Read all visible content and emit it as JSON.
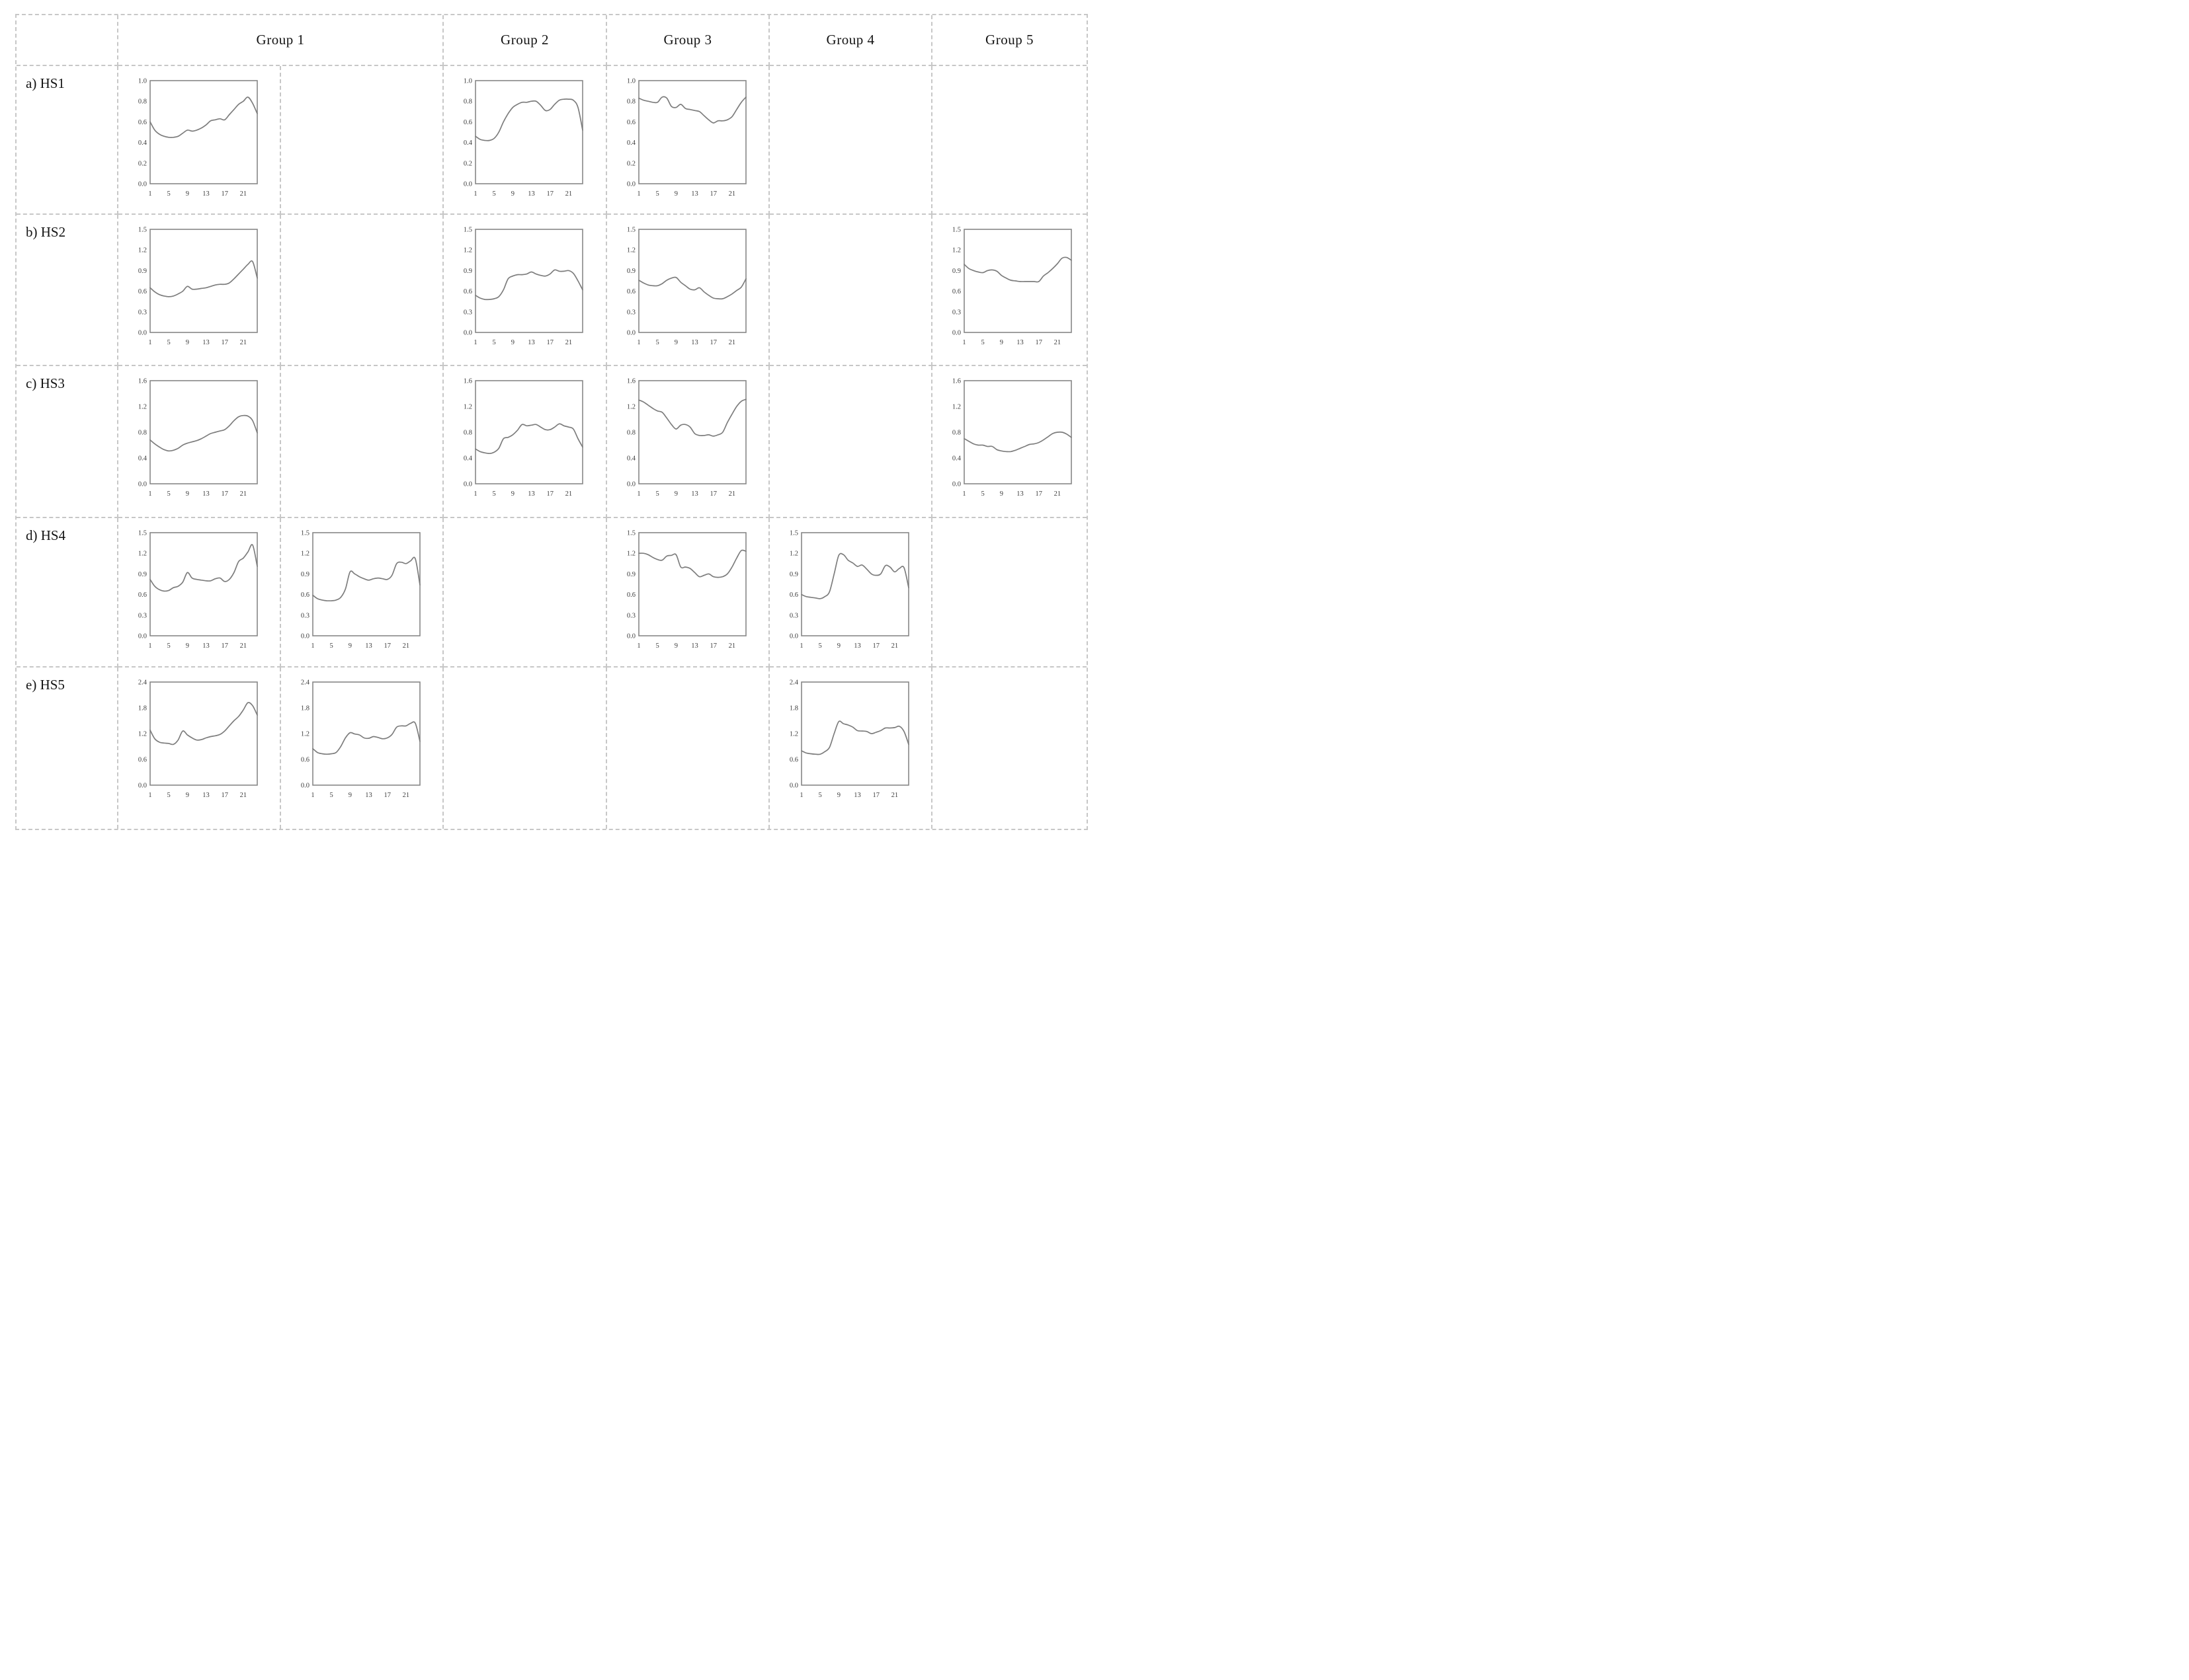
{
  "style": {
    "grid_border_color": "#c7c7c7",
    "plot_border_color": "#878787",
    "line_color": "#7d7d7d",
    "tick_text_color": "#3c3c3c",
    "label_text_color": "#141414",
    "background": "#ffffff"
  },
  "header": {
    "groups": [
      "Group 1",
      "Group 2",
      "Group 3",
      "Group 4",
      "Group 5"
    ]
  },
  "rows": [
    {
      "label": "a) HS1"
    },
    {
      "label": "b) HS2"
    },
    {
      "label": "c) HS3"
    },
    {
      "label": "d) HS4"
    },
    {
      "label": "e) HS5"
    }
  ],
  "x_axis": {
    "range": [
      1,
      24
    ],
    "ticks": [
      1,
      5,
      9,
      13,
      17,
      21
    ]
  },
  "chart_data": [
    {
      "id": "hs1-g1",
      "type": "line",
      "row_label": "a) HS1",
      "group": "Group 1",
      "ylim": [
        0,
        1.0
      ],
      "y_ticks": [
        0.0,
        0.2,
        0.4,
        0.6,
        0.8,
        1.0
      ],
      "x_ticks": [
        1,
        5,
        9,
        13,
        17,
        21
      ],
      "x_range": [
        1,
        24
      ],
      "values": [
        0.6,
        0.52,
        0.48,
        0.46,
        0.45,
        0.45,
        0.46,
        0.49,
        0.52,
        0.51,
        0.52,
        0.54,
        0.57,
        0.61,
        0.62,
        0.63,
        0.62,
        0.67,
        0.72,
        0.77,
        0.8,
        0.84,
        0.78,
        0.68
      ]
    },
    {
      "id": "hs1-g2",
      "type": "line",
      "row_label": "a) HS1",
      "group": "Group 2",
      "ylim": [
        0,
        1.0
      ],
      "y_ticks": [
        0.0,
        0.2,
        0.4,
        0.6,
        0.8,
        1.0
      ],
      "x_ticks": [
        1,
        5,
        9,
        13,
        17,
        21
      ],
      "x_range": [
        1,
        24
      ],
      "values": [
        0.46,
        0.43,
        0.42,
        0.42,
        0.44,
        0.5,
        0.6,
        0.68,
        0.74,
        0.77,
        0.79,
        0.79,
        0.8,
        0.8,
        0.76,
        0.71,
        0.72,
        0.77,
        0.81,
        0.82,
        0.82,
        0.81,
        0.74,
        0.52
      ]
    },
    {
      "id": "hs1-g3",
      "type": "line",
      "row_label": "a) HS1",
      "group": "Group 3",
      "ylim": [
        0,
        1.0
      ],
      "y_ticks": [
        0.0,
        0.2,
        0.4,
        0.6,
        0.8,
        1.0
      ],
      "x_ticks": [
        1,
        5,
        9,
        13,
        17,
        21
      ],
      "x_range": [
        1,
        24
      ],
      "values": [
        0.83,
        0.81,
        0.8,
        0.79,
        0.79,
        0.84,
        0.83,
        0.75,
        0.74,
        0.77,
        0.73,
        0.72,
        0.71,
        0.7,
        0.66,
        0.62,
        0.59,
        0.61,
        0.61,
        0.62,
        0.65,
        0.72,
        0.79,
        0.84
      ]
    },
    {
      "id": "hs2-g1",
      "type": "line",
      "row_label": "b) HS2",
      "group": "Group 1",
      "ylim": [
        0,
        1.5
      ],
      "y_ticks": [
        0.0,
        0.3,
        0.6,
        0.9,
        1.2,
        1.5
      ],
      "x_ticks": [
        1,
        5,
        9,
        13,
        17,
        21
      ],
      "x_range": [
        1,
        24
      ],
      "values": [
        0.65,
        0.59,
        0.55,
        0.53,
        0.52,
        0.53,
        0.56,
        0.6,
        0.67,
        0.63,
        0.63,
        0.64,
        0.65,
        0.67,
        0.69,
        0.7,
        0.7,
        0.72,
        0.78,
        0.85,
        0.92,
        0.99,
        1.03,
        0.79
      ]
    },
    {
      "id": "hs2-g2",
      "type": "line",
      "row_label": "b) HS2",
      "group": "Group 2",
      "ylim": [
        0,
        1.5
      ],
      "y_ticks": [
        0.0,
        0.3,
        0.6,
        0.9,
        1.2,
        1.5
      ],
      "x_ticks": [
        1,
        5,
        9,
        13,
        17,
        21
      ],
      "x_range": [
        1,
        24
      ],
      "values": [
        0.54,
        0.5,
        0.48,
        0.48,
        0.49,
        0.52,
        0.62,
        0.78,
        0.82,
        0.84,
        0.84,
        0.85,
        0.88,
        0.85,
        0.83,
        0.82,
        0.85,
        0.91,
        0.89,
        0.89,
        0.9,
        0.86,
        0.75,
        0.62
      ]
    },
    {
      "id": "hs2-g3",
      "type": "line",
      "row_label": "b) HS2",
      "group": "Group 3",
      "ylim": [
        0,
        1.5
      ],
      "y_ticks": [
        0.0,
        0.3,
        0.6,
        0.9,
        1.2,
        1.5
      ],
      "x_ticks": [
        1,
        5,
        9,
        13,
        17,
        21
      ],
      "x_range": [
        1,
        24
      ],
      "values": [
        0.76,
        0.72,
        0.69,
        0.68,
        0.68,
        0.71,
        0.76,
        0.79,
        0.8,
        0.73,
        0.68,
        0.63,
        0.62,
        0.65,
        0.59,
        0.54,
        0.5,
        0.49,
        0.49,
        0.52,
        0.56,
        0.61,
        0.66,
        0.78
      ]
    },
    {
      "id": "hs2-g5",
      "type": "line",
      "row_label": "b) HS2",
      "group": "Group 5",
      "ylim": [
        0,
        1.5
      ],
      "y_ticks": [
        0.0,
        0.3,
        0.6,
        0.9,
        1.2,
        1.5
      ],
      "x_ticks": [
        1,
        5,
        9,
        13,
        17,
        21
      ],
      "x_range": [
        1,
        24
      ],
      "values": [
        0.99,
        0.93,
        0.9,
        0.88,
        0.87,
        0.9,
        0.91,
        0.89,
        0.83,
        0.79,
        0.76,
        0.75,
        0.74,
        0.74,
        0.74,
        0.74,
        0.74,
        0.82,
        0.87,
        0.93,
        1.0,
        1.08,
        1.09,
        1.05
      ]
    },
    {
      "id": "hs3-g1",
      "type": "line",
      "row_label": "c) HS3",
      "group": "Group 1",
      "ylim": [
        0,
        1.6
      ],
      "y_ticks": [
        0.0,
        0.4,
        0.8,
        1.2,
        1.6
      ],
      "x_ticks": [
        1,
        5,
        9,
        13,
        17,
        21
      ],
      "x_range": [
        1,
        24
      ],
      "values": [
        0.68,
        0.62,
        0.57,
        0.53,
        0.51,
        0.52,
        0.55,
        0.6,
        0.63,
        0.65,
        0.67,
        0.7,
        0.74,
        0.78,
        0.8,
        0.82,
        0.84,
        0.9,
        0.98,
        1.04,
        1.06,
        1.05,
        0.98,
        0.79
      ]
    },
    {
      "id": "hs3-g2",
      "type": "line",
      "row_label": "c) HS3",
      "group": "Group 2",
      "ylim": [
        0,
        1.6
      ],
      "y_ticks": [
        0.0,
        0.4,
        0.8,
        1.2,
        1.6
      ],
      "x_ticks": [
        1,
        5,
        9,
        13,
        17,
        21
      ],
      "x_range": [
        1,
        24
      ],
      "values": [
        0.54,
        0.5,
        0.48,
        0.47,
        0.49,
        0.55,
        0.7,
        0.72,
        0.76,
        0.83,
        0.92,
        0.9,
        0.91,
        0.92,
        0.88,
        0.84,
        0.84,
        0.88,
        0.93,
        0.9,
        0.88,
        0.85,
        0.7,
        0.57
      ]
    },
    {
      "id": "hs3-g3",
      "type": "line",
      "row_label": "c) HS3",
      "group": "Group 3",
      "ylim": [
        0,
        1.6
      ],
      "y_ticks": [
        0.0,
        0.4,
        0.8,
        1.2,
        1.6
      ],
      "x_ticks": [
        1,
        5,
        9,
        13,
        17,
        21
      ],
      "x_range": [
        1,
        24
      ],
      "values": [
        1.3,
        1.27,
        1.22,
        1.17,
        1.13,
        1.11,
        1.02,
        0.92,
        0.85,
        0.91,
        0.92,
        0.88,
        0.78,
        0.75,
        0.75,
        0.76,
        0.74,
        0.76,
        0.8,
        0.95,
        1.08,
        1.2,
        1.28,
        1.31
      ]
    },
    {
      "id": "hs3-g5",
      "type": "line",
      "row_label": "c) HS3",
      "group": "Group 5",
      "ylim": [
        0,
        1.6
      ],
      "y_ticks": [
        0.0,
        0.4,
        0.8,
        1.2,
        1.6
      ],
      "x_ticks": [
        1,
        5,
        9,
        13,
        17,
        21
      ],
      "x_range": [
        1,
        24
      ],
      "values": [
        0.7,
        0.66,
        0.62,
        0.6,
        0.6,
        0.58,
        0.58,
        0.53,
        0.51,
        0.5,
        0.5,
        0.52,
        0.55,
        0.58,
        0.61,
        0.62,
        0.64,
        0.68,
        0.73,
        0.78,
        0.8,
        0.8,
        0.77,
        0.72
      ]
    },
    {
      "id": "hs4-g1a",
      "type": "line",
      "row_label": "d) HS4",
      "group": "Group 1",
      "ylim": [
        0,
        1.5
      ],
      "y_ticks": [
        0.0,
        0.3,
        0.6,
        0.9,
        1.2,
        1.5
      ],
      "x_ticks": [
        1,
        5,
        9,
        13,
        17,
        21
      ],
      "x_range": [
        1,
        24
      ],
      "values": [
        0.82,
        0.72,
        0.67,
        0.65,
        0.66,
        0.7,
        0.72,
        0.78,
        0.92,
        0.84,
        0.82,
        0.81,
        0.8,
        0.8,
        0.83,
        0.84,
        0.79,
        0.82,
        0.92,
        1.08,
        1.13,
        1.22,
        1.32,
        1.01
      ]
    },
    {
      "id": "hs4-g1b",
      "type": "line",
      "row_label": "d) HS4",
      "group": "Group 1",
      "ylim": [
        0,
        1.5
      ],
      "y_ticks": [
        0.0,
        0.3,
        0.6,
        0.9,
        1.2,
        1.5
      ],
      "x_ticks": [
        1,
        5,
        9,
        13,
        17,
        21
      ],
      "x_range": [
        1,
        24
      ],
      "values": [
        0.59,
        0.54,
        0.52,
        0.51,
        0.51,
        0.52,
        0.56,
        0.68,
        0.93,
        0.9,
        0.86,
        0.83,
        0.81,
        0.83,
        0.84,
        0.83,
        0.82,
        0.88,
        1.05,
        1.07,
        1.05,
        1.09,
        1.12,
        0.74
      ]
    },
    {
      "id": "hs4-g3",
      "type": "line",
      "row_label": "d) HS4",
      "group": "Group 3",
      "ylim": [
        0,
        1.5
      ],
      "y_ticks": [
        0.0,
        0.3,
        0.6,
        0.9,
        1.2,
        1.5
      ],
      "x_ticks": [
        1,
        5,
        9,
        13,
        17,
        21
      ],
      "x_range": [
        1,
        24
      ],
      "values": [
        1.2,
        1.2,
        1.18,
        1.14,
        1.11,
        1.1,
        1.16,
        1.17,
        1.18,
        1.0,
        1.0,
        0.98,
        0.92,
        0.86,
        0.88,
        0.9,
        0.86,
        0.85,
        0.86,
        0.9,
        1.0,
        1.13,
        1.24,
        1.23
      ]
    },
    {
      "id": "hs4-g4",
      "type": "line",
      "row_label": "d) HS4",
      "group": "Group 4",
      "ylim": [
        0,
        1.5
      ],
      "y_ticks": [
        0.0,
        0.3,
        0.6,
        0.9,
        1.2,
        1.5
      ],
      "x_ticks": [
        1,
        5,
        9,
        13,
        17,
        21
      ],
      "x_range": [
        1,
        24
      ],
      "values": [
        0.6,
        0.57,
        0.56,
        0.55,
        0.54,
        0.57,
        0.64,
        0.9,
        1.17,
        1.18,
        1.1,
        1.06,
        1.01,
        1.03,
        0.97,
        0.9,
        0.88,
        0.9,
        1.02,
        1.0,
        0.93,
        0.98,
        0.99,
        0.7
      ]
    },
    {
      "id": "hs5-g1a",
      "type": "line",
      "row_label": "e) HS5",
      "group": "Group 1",
      "ylim": [
        0,
        2.4
      ],
      "y_ticks": [
        0.0,
        0.6,
        1.2,
        1.8,
        2.4
      ],
      "x_ticks": [
        1,
        5,
        9,
        13,
        17,
        21
      ],
      "x_range": [
        1,
        24
      ],
      "values": [
        1.28,
        1.08,
        1.0,
        0.98,
        0.97,
        0.95,
        1.05,
        1.26,
        1.17,
        1.1,
        1.05,
        1.06,
        1.1,
        1.13,
        1.15,
        1.18,
        1.26,
        1.38,
        1.5,
        1.6,
        1.75,
        1.92,
        1.85,
        1.63
      ]
    },
    {
      "id": "hs5-g1b",
      "type": "line",
      "row_label": "e) HS5",
      "group": "Group 1",
      "ylim": [
        0,
        2.4
      ],
      "y_ticks": [
        0.0,
        0.6,
        1.2,
        1.8,
        2.4
      ],
      "x_ticks": [
        1,
        5,
        9,
        13,
        17,
        21
      ],
      "x_range": [
        1,
        24
      ],
      "values": [
        0.85,
        0.76,
        0.73,
        0.72,
        0.73,
        0.76,
        0.9,
        1.1,
        1.22,
        1.19,
        1.17,
        1.1,
        1.09,
        1.13,
        1.11,
        1.08,
        1.1,
        1.18,
        1.35,
        1.38,
        1.38,
        1.44,
        1.44,
        1.02
      ]
    },
    {
      "id": "hs5-g4",
      "type": "line",
      "row_label": "e) HS5",
      "group": "Group 4",
      "ylim": [
        0,
        2.4
      ],
      "y_ticks": [
        0.0,
        0.6,
        1.2,
        1.8,
        2.4
      ],
      "x_ticks": [
        1,
        5,
        9,
        13,
        17,
        21
      ],
      "x_range": [
        1,
        24
      ],
      "values": [
        0.8,
        0.75,
        0.73,
        0.72,
        0.72,
        0.78,
        0.88,
        1.2,
        1.48,
        1.43,
        1.4,
        1.35,
        1.27,
        1.26,
        1.25,
        1.2,
        1.23,
        1.27,
        1.33,
        1.33,
        1.34,
        1.37,
        1.25,
        0.95
      ]
    }
  ]
}
